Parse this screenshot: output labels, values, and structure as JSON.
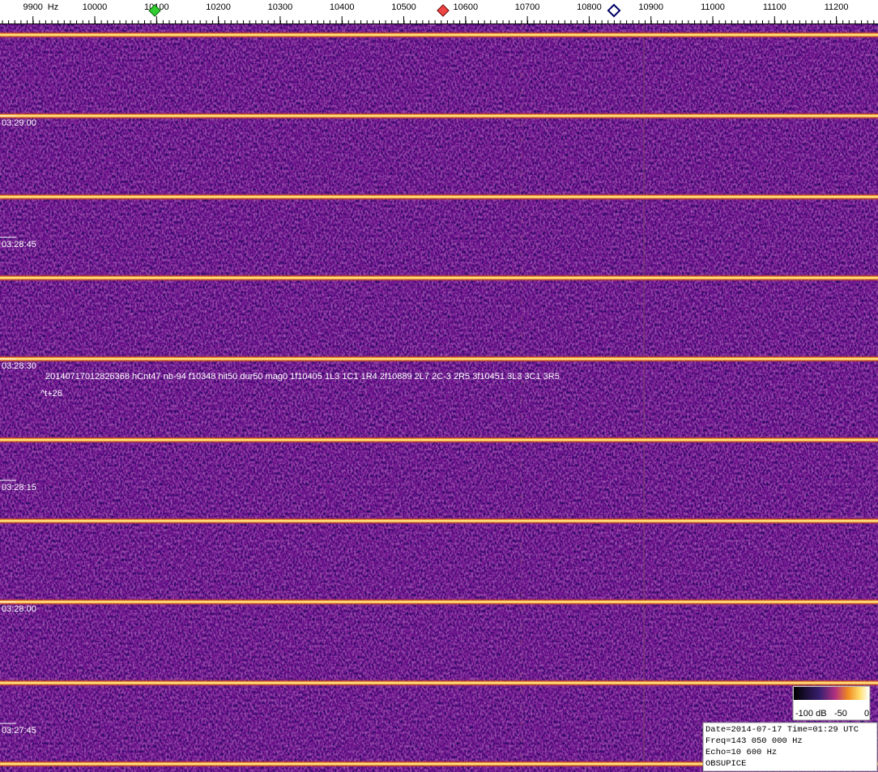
{
  "ruler": {
    "unit": "Hz",
    "ticks": [
      9900,
      10000,
      10100,
      10200,
      10300,
      10400,
      10500,
      10600,
      10700,
      10800,
      10900,
      11000,
      11100,
      11200
    ]
  },
  "time_labels": [
    "03:29:00",
    "03:28:45",
    "03:28:30",
    "03:28:15",
    "03:28:00",
    "03:27:45"
  ],
  "annotation": {
    "line1": "20140717012826368 hCnt47 nb-94 f10348 hit50 dur50 mag0 1f10405 1L3 1C1 1R4 2f10889 2L7 2C-3 2R5 3f10451 3L3 3C1 3R5",
    "line2": "^t+26"
  },
  "colorbar": {
    "labels": [
      "-100 dB",
      "-50",
      "0"
    ]
  },
  "info": {
    "lines": [
      "Date=2014-07-17 Time=01:29 UTC",
      "Freq=143 050 000 Hz",
      "Echo=10 600 Hz",
      "OBSUPICE"
    ]
  }
}
